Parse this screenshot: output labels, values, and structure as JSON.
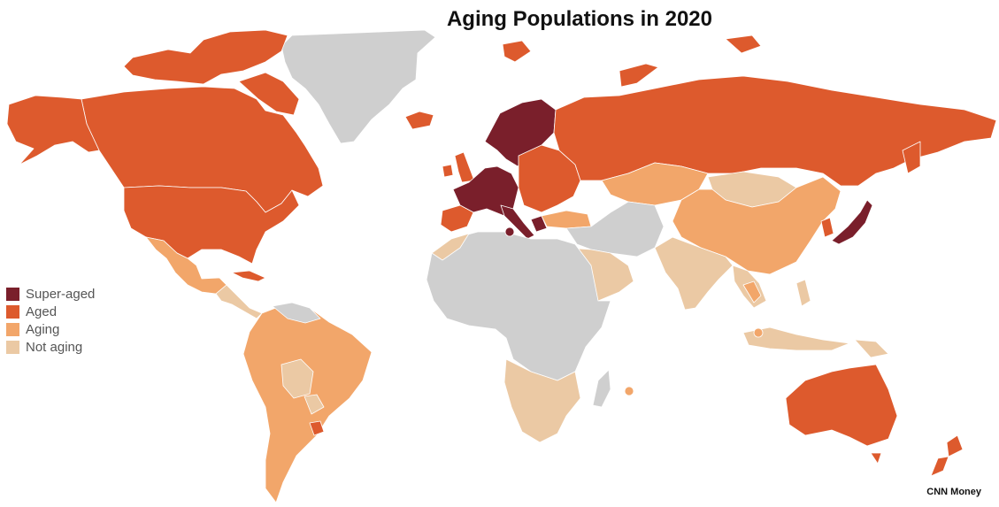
{
  "title": "Aging Populations in 2020",
  "credit": "CNN Money",
  "legend": [
    {
      "label": "Super-aged",
      "color": "#7a1f2b"
    },
    {
      "label": "Aged",
      "color": "#dd5a2d"
    },
    {
      "label": "Aging",
      "color": "#f2a66a"
    },
    {
      "label": "Not aging",
      "color": "#ebc9a4"
    }
  ],
  "no_data_color": "#cfcfcf",
  "regions": [
    {
      "name": "Greenland",
      "category": "no-data"
    },
    {
      "name": "Canada",
      "category": "Aged"
    },
    {
      "name": "United States",
      "category": "Aged"
    },
    {
      "name": "Mexico",
      "category": "Aging"
    },
    {
      "name": "Central America",
      "category": "Not aging"
    },
    {
      "name": "Cuba",
      "category": "Aged"
    },
    {
      "name": "South America",
      "category": "Aging"
    },
    {
      "name": "Bolivia",
      "category": "Not aging"
    },
    {
      "name": "Uruguay",
      "category": "Aged"
    },
    {
      "name": "Iceland",
      "category": "Aged"
    },
    {
      "name": "Western Europe",
      "category": "Super-aged"
    },
    {
      "name": "Scandinavia",
      "category": "Super-aged"
    },
    {
      "name": "Eastern Europe",
      "category": "Aged"
    },
    {
      "name": "Russia",
      "category": "Aged"
    },
    {
      "name": "Central Asia",
      "category": "Aging"
    },
    {
      "name": "Mongolia",
      "category": "Not aging"
    },
    {
      "name": "China",
      "category": "Aging"
    },
    {
      "name": "Japan",
      "category": "Super-aged"
    },
    {
      "name": "Korea",
      "category": "Aged"
    },
    {
      "name": "Southeast Asia",
      "category": "Not aging"
    },
    {
      "name": "Thailand",
      "category": "Aging"
    },
    {
      "name": "South Asia",
      "category": "Not aging"
    },
    {
      "name": "Middle East",
      "category": "no-data"
    },
    {
      "name": "Arabian Peninsula",
      "category": "Not aging"
    },
    {
      "name": "Africa",
      "category": "no-data"
    },
    {
      "name": "Southern Africa",
      "category": "Not aging"
    },
    {
      "name": "Australia",
      "category": "Aged"
    },
    {
      "name": "New Zealand",
      "category": "Aged"
    },
    {
      "name": "Indonesia",
      "category": "Not aging"
    },
    {
      "name": "Papua New Guinea",
      "category": "Not aging"
    }
  ]
}
